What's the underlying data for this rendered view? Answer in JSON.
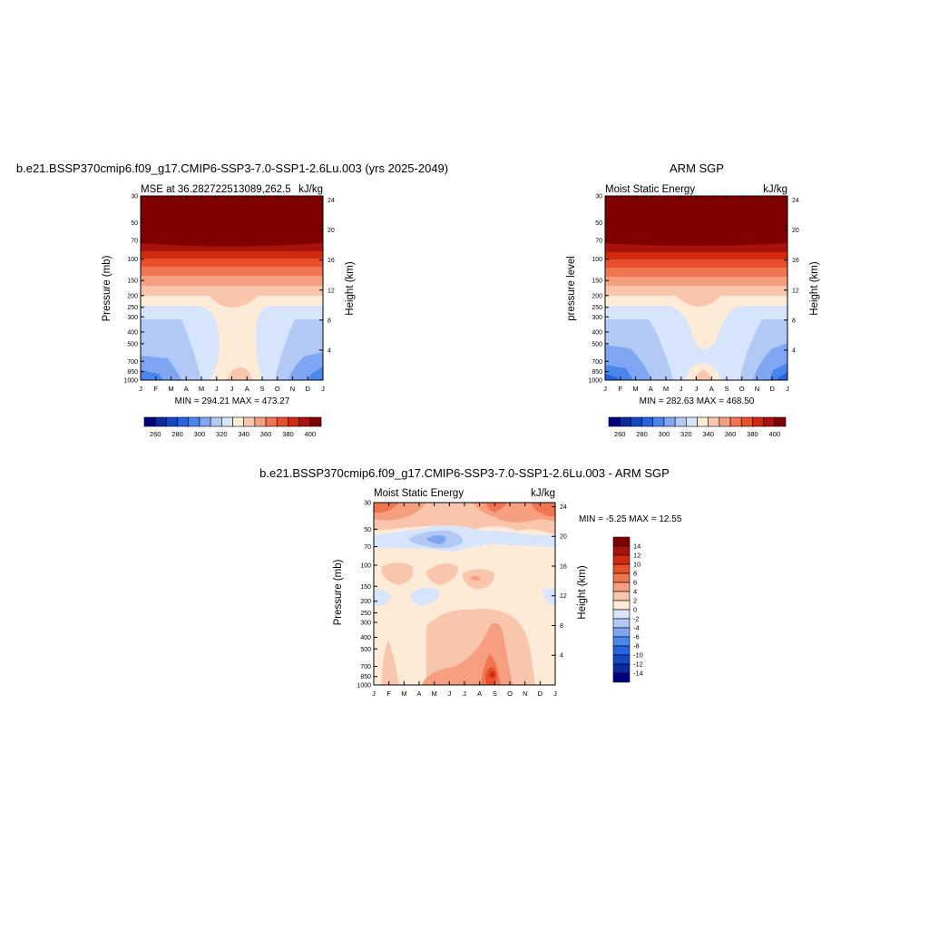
{
  "chart_data": [
    {
      "type": "heatmap",
      "title": "b.e21.BSSP370cmip6.f09_g17.CMIP6-SSP3-7.0-SSP1-2.6Lu.003 (yrs 2025-2049)",
      "subtitle_left": "MSE at 36.282722513089,262.5",
      "subtitle_right": "kJ/kg",
      "ylabel": "Pressure (mb)",
      "ylabel_right": "Height (km)",
      "x_ticks": [
        "J",
        "F",
        "M",
        "A",
        "M",
        "J",
        "J",
        "A",
        "S",
        "O",
        "N",
        "D",
        "J"
      ],
      "y_ticks": [
        "30",
        "50",
        "70",
        "100",
        "150",
        "200",
        "250",
        "300",
        "400",
        "500",
        "700",
        "850",
        "1000"
      ],
      "y_ticks_right": [
        "24",
        "20",
        "16",
        "12",
        "8",
        "4"
      ],
      "stats": "MIN = 294.21 MAX = 473.27",
      "levels": [
        260,
        270,
        280,
        290,
        300,
        310,
        320,
        330,
        340,
        350,
        360,
        370,
        380,
        390,
        400
      ],
      "colorbar_labels": [
        "260",
        "280",
        "300",
        "320",
        "340",
        "360",
        "380",
        "400"
      ]
    },
    {
      "type": "heatmap",
      "title": "ARM SGP",
      "subtitle_left": "Moist Static Energy",
      "subtitle_right": "kJ/kg",
      "ylabel": "pressure level",
      "ylabel_right": "Height (km)",
      "x_ticks": [
        "J",
        "F",
        "M",
        "A",
        "M",
        "J",
        "J",
        "A",
        "S",
        "O",
        "N",
        "D",
        "J"
      ],
      "y_ticks": [
        "30",
        "50",
        "70",
        "100",
        "150",
        "200",
        "250",
        "300",
        "400",
        "500",
        "700",
        "850",
        "1000"
      ],
      "y_ticks_right": [
        "24",
        "20",
        "16",
        "12",
        "8",
        "4"
      ],
      "stats": "MIN = 282.63 MAX = 468.50",
      "levels": [
        260,
        270,
        280,
        290,
        300,
        310,
        320,
        330,
        340,
        350,
        360,
        370,
        380,
        390,
        400
      ],
      "colorbar_labels": [
        "260",
        "280",
        "300",
        "320",
        "340",
        "360",
        "380",
        "400"
      ]
    },
    {
      "type": "heatmap",
      "title": "b.e21.BSSP370cmip6.f09_g17.CMIP6-SSP3-7.0-SSP1-2.6Lu.003 - ARM SGP",
      "subtitle_left": "Moist Static Energy",
      "subtitle_right": "kJ/kg",
      "ylabel": "Pressure (mb)",
      "ylabel_right": "Height (km)",
      "x_ticks": [
        "J",
        "F",
        "M",
        "A",
        "M",
        "J",
        "J",
        "A",
        "S",
        "O",
        "N",
        "D",
        "J"
      ],
      "y_ticks": [
        "30",
        "50",
        "70",
        "100",
        "150",
        "200",
        "250",
        "300",
        "400",
        "500",
        "700",
        "850",
        "1000"
      ],
      "y_ticks_right": [
        "24",
        "20",
        "16",
        "12",
        "8",
        "4"
      ],
      "stats": "MIN =  -5.25 MAX =  12.55",
      "levels": [
        -14,
        -12,
        -10,
        -8,
        -6,
        -4,
        -2,
        0,
        2,
        4,
        6,
        8,
        10,
        12,
        14
      ],
      "colorbar_labels": [
        "14",
        "12",
        "10",
        "8",
        "6",
        "4",
        "2",
        "0",
        "-2",
        "-4",
        "-6",
        "-8",
        "-10",
        "-12",
        "-14"
      ]
    }
  ],
  "colors": {
    "mse": [
      "#00007f",
      "#0a2a9e",
      "#1346c2",
      "#2563e0",
      "#4b86ec",
      "#7ea6f2",
      "#b2c9f6",
      "#d6e5fb",
      "#fdebd7",
      "#f9c6ad",
      "#f59f80",
      "#ef7650",
      "#e8502b",
      "#d12a10",
      "#a8120a",
      "#800000"
    ],
    "diff": [
      "#00007f",
      "#0a2a9e",
      "#1346c2",
      "#2563e0",
      "#4b86ec",
      "#7ea6f2",
      "#b2c9f6",
      "#d6e5fb",
      "#fdebd7",
      "#f9c6ad",
      "#f59f80",
      "#ef7650",
      "#e8502b",
      "#d12a10",
      "#a8120a",
      "#800000"
    ]
  }
}
